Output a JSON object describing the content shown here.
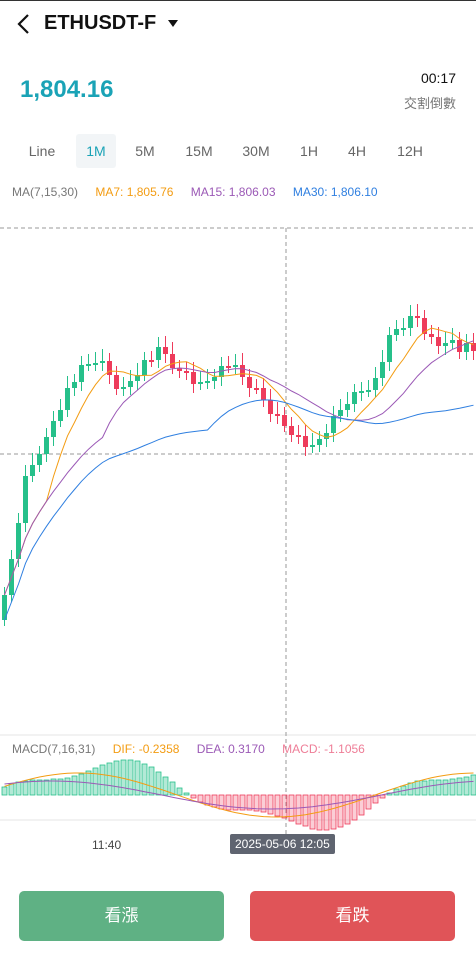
{
  "header": {
    "symbol": "ETHUSDT-F",
    "icons": {
      "back": "chevron-left-icon",
      "dropdown": "caret-down-icon"
    }
  },
  "ticker": {
    "price": "1,804.16",
    "countdown": "00:17",
    "countdown_label": "交割倒數"
  },
  "tabs": [
    {
      "label": "Line",
      "active": false
    },
    {
      "label": "1M",
      "active": true
    },
    {
      "label": "5M",
      "active": false
    },
    {
      "label": "15M",
      "active": false
    },
    {
      "label": "30M",
      "active": false
    },
    {
      "label": "1H",
      "active": false
    },
    {
      "label": "4H",
      "active": false
    },
    {
      "label": "12H",
      "active": false
    }
  ],
  "indicators": {
    "ma": {
      "label": "MA(7,15,30)",
      "ma7": "MA7: 1,805.76",
      "ma15": "MA15: 1,806.03",
      "ma30": "MA30: 1,806.10"
    },
    "macd": {
      "label": "MACD(7,16,31)",
      "dif": "DIF: -0.2358",
      "dea": "DEA: 0.3170",
      "macd": "MACD: -1.1056"
    }
  },
  "chart": {
    "time_tick": "11:40",
    "crosshair_time": "2025-05-06 12:05"
  },
  "colors": {
    "up": "#26c08a",
    "down": "#ee3b5b",
    "price": "#1aa3b6",
    "ma7": "#f39c12",
    "ma15": "#9b59b6",
    "ma30": "#2f7fe0"
  },
  "actions": {
    "buy_up": "看漲",
    "buy_down": "看跌"
  }
}
